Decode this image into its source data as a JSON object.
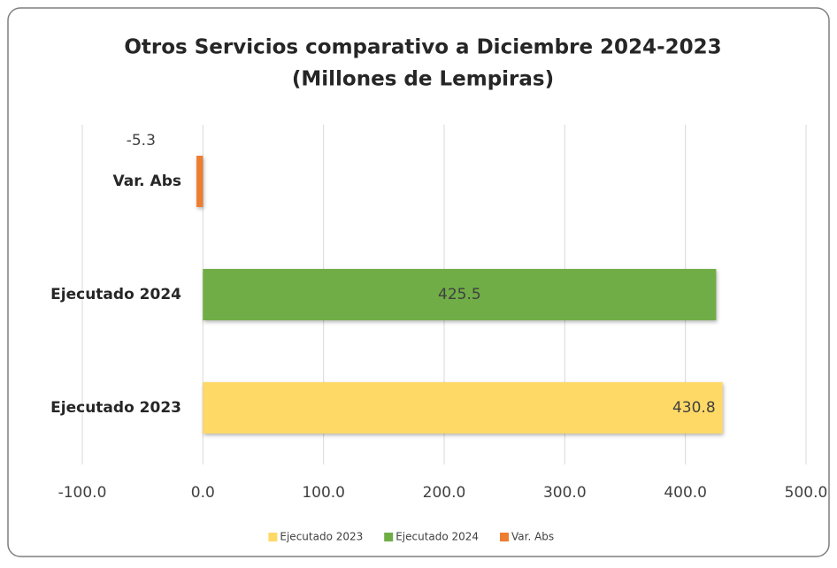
{
  "chart_data": {
    "type": "hbar",
    "title": "Otros Servicios comparativo a Diciembre 2024-2023",
    "subtitle": "(Millones de Lempiras)",
    "categories": [
      "Ejecutado 2023",
      "Ejecutado 2024",
      "Var. Abs"
    ],
    "series": [
      {
        "name": "Ejecutado 2023",
        "color": "#ffd966",
        "values": [
          430.8,
          null,
          null
        ]
      },
      {
        "name": "Ejecutado 2024",
        "color": "#70ad47",
        "values": [
          null,
          425.5,
          null
        ]
      },
      {
        "name": "Var. Abs",
        "color": "#ed7d31",
        "values": [
          null,
          null,
          -5.3
        ]
      }
    ],
    "xlim": [
      -100,
      500
    ],
    "xticks": [
      {
        "value": -100,
        "label": "-100.0"
      },
      {
        "value": 0,
        "label": "0.0"
      },
      {
        "value": 100,
        "label": "100.0"
      },
      {
        "value": 200,
        "label": "200.0"
      },
      {
        "value": 300,
        "label": "300.0"
      },
      {
        "value": 400,
        "label": "400.0"
      },
      {
        "value": 500,
        "label": "500.0"
      }
    ],
    "grid": true,
    "legend": "bottom"
  }
}
